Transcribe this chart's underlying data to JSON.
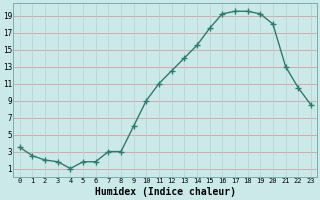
{
  "x": [
    0,
    1,
    2,
    3,
    4,
    5,
    6,
    7,
    8,
    9,
    10,
    11,
    12,
    13,
    14,
    15,
    16,
    17,
    18,
    19,
    20,
    21,
    22,
    23
  ],
  "y": [
    3.5,
    2.5,
    2.0,
    1.8,
    1.0,
    1.8,
    1.8,
    3.0,
    3.0,
    6.0,
    9.0,
    11.0,
    12.5,
    14.0,
    15.5,
    17.5,
    19.2,
    19.5,
    19.5,
    19.2,
    18.0,
    13.0,
    10.5,
    8.5
  ],
  "line_color": "#2e7b6e",
  "marker": "+",
  "marker_size": 4,
  "linewidth": 1.0,
  "bg_color": "#cce9e9",
  "grid_color_h": "#d4a0a0",
  "grid_color_v": "#b8d4d4",
  "xlabel": "Humidex (Indice chaleur)",
  "xlabel_fontsize": 7,
  "yticks": [
    1,
    3,
    5,
    7,
    9,
    11,
    13,
    15,
    17,
    19
  ],
  "xtick_labels": [
    "0",
    "1",
    "2",
    "3",
    "4",
    "5",
    "6",
    "7",
    "8",
    "9",
    "10",
    "11",
    "12",
    "13",
    "14",
    "15",
    "16",
    "17",
    "18",
    "19",
    "20",
    "21",
    "22",
    "23"
  ],
  "ylim": [
    0,
    20.5
  ],
  "xlim": [
    -0.5,
    23.5
  ]
}
